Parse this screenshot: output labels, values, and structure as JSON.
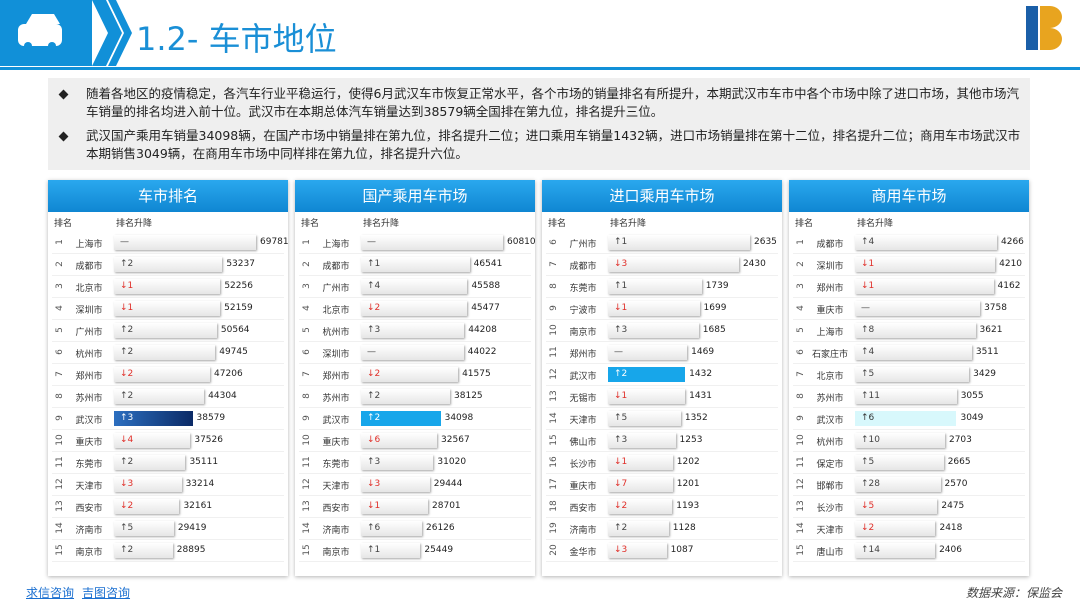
{
  "header": {
    "title": "1.2- 车市地位"
  },
  "summary": [
    "随着各地区的疫情稳定，各汽车行业平稳运行，使得6月武汉车市恢复正常水平，各个市场的销量排名有所提升，本期武汉市车市中各个市场中除了进口市场，其他市场汽车销量的排名均进入前十位。武汉市在本期总体汽车销量达到38579辆全国排在第九位，排名提升三位。",
    "武汉国产乘用车销量34098辆，在国产市场中销量排在第九位，排名提升二位；进口乘用车销量1432辆，进口市场销量排在第十二位，排名提升二位；商用车市场武汉市本期销售3049辆，在商用车市场中同样排在第九位，排名提升六位。"
  ],
  "columns": {
    "rank": "排名",
    "change": "排名升降"
  },
  "panels": [
    {
      "title": "车市排名",
      "rows": [
        [
          1,
          "上海市",
          "—",
          69781
        ],
        [
          2,
          "成都市",
          "↑2",
          53237
        ],
        [
          3,
          "北京市",
          "↓1",
          52256
        ],
        [
          4,
          "深圳市",
          "↓1",
          52159
        ],
        [
          5,
          "广州市",
          "↑2",
          50564
        ],
        [
          6,
          "杭州市",
          "↑2",
          49745
        ],
        [
          7,
          "郑州市",
          "↓2",
          47206
        ],
        [
          8,
          "苏州市",
          "↑2",
          44304
        ],
        [
          9,
          "武汉市",
          "↑3",
          38579
        ],
        [
          10,
          "重庆市",
          "↓4",
          37526
        ],
        [
          11,
          "东莞市",
          "↑2",
          35111
        ],
        [
          12,
          "天津市",
          "↓3",
          33214
        ],
        [
          13,
          "西安市",
          "↓2",
          32161
        ],
        [
          14,
          "济南市",
          "↑5",
          29419
        ],
        [
          15,
          "南京市",
          "↑2",
          28895
        ]
      ]
    },
    {
      "title": "国产乘用车市场",
      "rows": [
        [
          1,
          "上海市",
          "—",
          60810
        ],
        [
          2,
          "成都市",
          "↑1",
          46541
        ],
        [
          3,
          "广州市",
          "↑4",
          45588
        ],
        [
          4,
          "北京市",
          "↓2",
          45477
        ],
        [
          5,
          "杭州市",
          "↑3",
          44208
        ],
        [
          6,
          "深圳市",
          "—",
          44022
        ],
        [
          7,
          "郑州市",
          "↓2",
          41575
        ],
        [
          8,
          "苏州市",
          "↑2",
          38125
        ],
        [
          9,
          "武汉市",
          "↑2",
          34098
        ],
        [
          10,
          "重庆市",
          "↓6",
          32567
        ],
        [
          11,
          "东莞市",
          "↑3",
          31020
        ],
        [
          12,
          "天津市",
          "↓3",
          29444
        ],
        [
          13,
          "西安市",
          "↓1",
          28701
        ],
        [
          14,
          "济南市",
          "↑6",
          26126
        ],
        [
          15,
          "南京市",
          "↑1",
          25449
        ]
      ]
    },
    {
      "title": "进口乘用车市场",
      "rows": [
        [
          6,
          "广州市",
          "↑1",
          2635
        ],
        [
          7,
          "成都市",
          "↓3",
          2430
        ],
        [
          8,
          "东莞市",
          "↑1",
          1739
        ],
        [
          9,
          "宁波市",
          "↓1",
          1699
        ],
        [
          10,
          "南京市",
          "↑3",
          1685
        ],
        [
          11,
          "郑州市",
          "—",
          1469
        ],
        [
          12,
          "武汉市",
          "↑2",
          1432
        ],
        [
          13,
          "无锡市",
          "↓1",
          1431
        ],
        [
          14,
          "天津市",
          "↑5",
          1352
        ],
        [
          15,
          "佛山市",
          "↑3",
          1253
        ],
        [
          16,
          "长沙市",
          "↓1",
          1202
        ],
        [
          17,
          "重庆市",
          "↓7",
          1201
        ],
        [
          18,
          "西安市",
          "↓2",
          1193
        ],
        [
          19,
          "济南市",
          "↑2",
          1128
        ],
        [
          20,
          "金华市",
          "↓3",
          1087
        ]
      ]
    },
    {
      "title": "商用车市场",
      "rows": [
        [
          1,
          "成都市",
          "↑4",
          4266
        ],
        [
          2,
          "深圳市",
          "↓1",
          4210
        ],
        [
          3,
          "郑州市",
          "↓1",
          4162
        ],
        [
          4,
          "重庆市",
          "—",
          3758
        ],
        [
          5,
          "上海市",
          "↑8",
          3621
        ],
        [
          6,
          "石家庄市",
          "↑4",
          3511
        ],
        [
          7,
          "北京市",
          "↑5",
          3429
        ],
        [
          8,
          "苏州市",
          "↑11",
          3055
        ],
        [
          9,
          "武汉市",
          "↑6",
          3049
        ],
        [
          10,
          "杭州市",
          "↑10",
          2703
        ],
        [
          11,
          "保定市",
          "↑5",
          2665
        ],
        [
          12,
          "邯郸市",
          "↑28",
          2570
        ],
        [
          13,
          "长沙市",
          "↓5",
          2475
        ],
        [
          14,
          "天津市",
          "↓2",
          2418
        ],
        [
          15,
          "唐山市",
          "↑14",
          2406
        ]
      ]
    }
  ],
  "footer": {
    "links": [
      "求信咨询",
      "吉图咨询"
    ],
    "source": "数据来源：保监会"
  }
}
